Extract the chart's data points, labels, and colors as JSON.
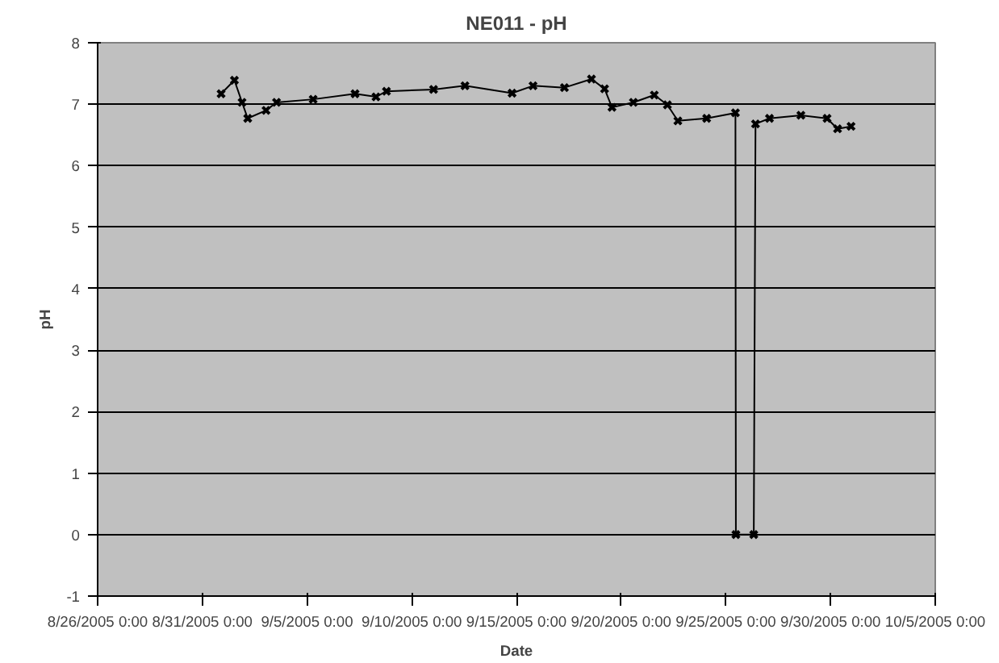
{
  "chart_data": {
    "type": "line",
    "title": "NE011 - pH",
    "xlabel": "Date",
    "ylabel": "pH",
    "x": [
      "2005-08-31T21:30",
      "2005-09-01T12:45",
      "2005-09-01T21:30",
      "2005-09-02T04:00",
      "2005-09-03T01:00",
      "2005-09-03T13:00",
      "2005-09-05T07:00",
      "2005-09-07T07:00",
      "2005-09-08T07:00",
      "2005-09-08T19:00",
      "2005-09-11T01:00",
      "2005-09-12T13:00",
      "2005-09-14T19:00",
      "2005-09-15T19:00",
      "2005-09-17T07:00",
      "2005-09-18T14:00",
      "2005-09-19T05:00",
      "2005-09-19T13:30",
      "2005-09-20T14:00",
      "2005-09-21T14:00",
      "2005-09-22T05:00",
      "2005-09-22T17:00",
      "2005-09-24T02:00",
      "2005-09-25T11:00",
      "2005-09-25T11:30",
      "2005-09-26T08:00",
      "2005-09-26T10:00",
      "2005-09-27T02:00",
      "2005-09-28T14:00",
      "2005-09-29T20:00",
      "2005-09-30T08:00",
      "2005-09-30T23:30"
    ],
    "series": [
      {
        "color": "#000000",
        "values": [
          7.17,
          7.39,
          7.03,
          6.77,
          6.9,
          7.03,
          7.08,
          7.17,
          7.12,
          7.21,
          7.24,
          7.3,
          7.18,
          7.3,
          7.27,
          7.41,
          7.25,
          6.95,
          7.03,
          7.15,
          6.99,
          6.73,
          6.77,
          6.86,
          0,
          0,
          6.68,
          6.77,
          6.82,
          6.77,
          6.6,
          6.64
        ]
      }
    ],
    "xlim": [
      "2005-08-26",
      "2005-10-05"
    ],
    "xticks": [
      {
        "value": "2005-08-26",
        "label": "8/26/2005 0:00"
      },
      {
        "value": "2005-08-31",
        "label": "8/31/2005 0:00"
      },
      {
        "value": "2005-09-05",
        "label": "9/5/2005 0:00"
      },
      {
        "value": "2005-09-10",
        "label": "9/10/2005 0:00"
      },
      {
        "value": "2005-09-15",
        "label": "9/15/2005 0:00"
      },
      {
        "value": "2005-09-20",
        "label": "9/20/2005 0:00"
      },
      {
        "value": "2005-09-25",
        "label": "9/25/2005 0:00"
      },
      {
        "value": "2005-09-30",
        "label": "9/30/2005 0:00"
      },
      {
        "value": "2005-10-05",
        "label": "10/5/2005 0:00"
      }
    ],
    "ylim": [
      -1,
      8
    ],
    "yticks": [
      -1,
      0,
      1,
      2,
      3,
      4,
      5,
      6,
      7,
      8
    ],
    "grid": "y",
    "marker": "cross",
    "line_style": "solid"
  }
}
